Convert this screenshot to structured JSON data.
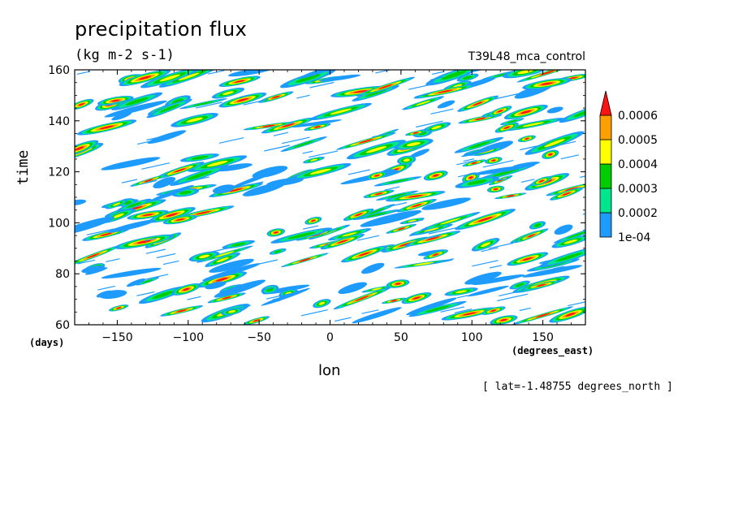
{
  "chart_data": {
    "type": "heatmap",
    "title": "precipitation flux",
    "subtitle": "(kg m-2 s-1)",
    "run_label": "T39L48_mca_control",
    "xlabel": "lon",
    "xunits": "(degrees_east)",
    "ylabel": "time",
    "yunits": "(days)",
    "annotation": "[ lat=-1.48755 degrees_north ]",
    "xlim": [
      -180,
      180
    ],
    "ylim": [
      60,
      160
    ],
    "xticks": [
      -150,
      -100,
      -50,
      0,
      50,
      100,
      150
    ],
    "xtick_labels": [
      "−150",
      "−100",
      "−50",
      "0",
      "50",
      "100",
      "150"
    ],
    "yticks": [
      60,
      80,
      100,
      120,
      140,
      160
    ],
    "ytick_labels": [
      "60",
      "80",
      "100",
      "120",
      "140",
      "160"
    ],
    "colorbar": {
      "labels": [
        "1e-04",
        "0.0002",
        "0.0003",
        "0.0004",
        "0.0005",
        "0.0006"
      ],
      "levels": [
        0.0001,
        0.0002,
        0.0003,
        0.0004,
        0.0005,
        0.0006
      ],
      "colors": [
        "#1e9bff",
        "#00e68c",
        "#00cd00",
        "#ffff00",
        "#ffa000",
        "#ff1414"
      ]
    },
    "pattern": "scattered eastward-propagating precipitation streaks (tilted upward to the right), mostly below 1e-04 (white) with embedded cores exceeding 0.0006 (red)",
    "grid": false
  }
}
